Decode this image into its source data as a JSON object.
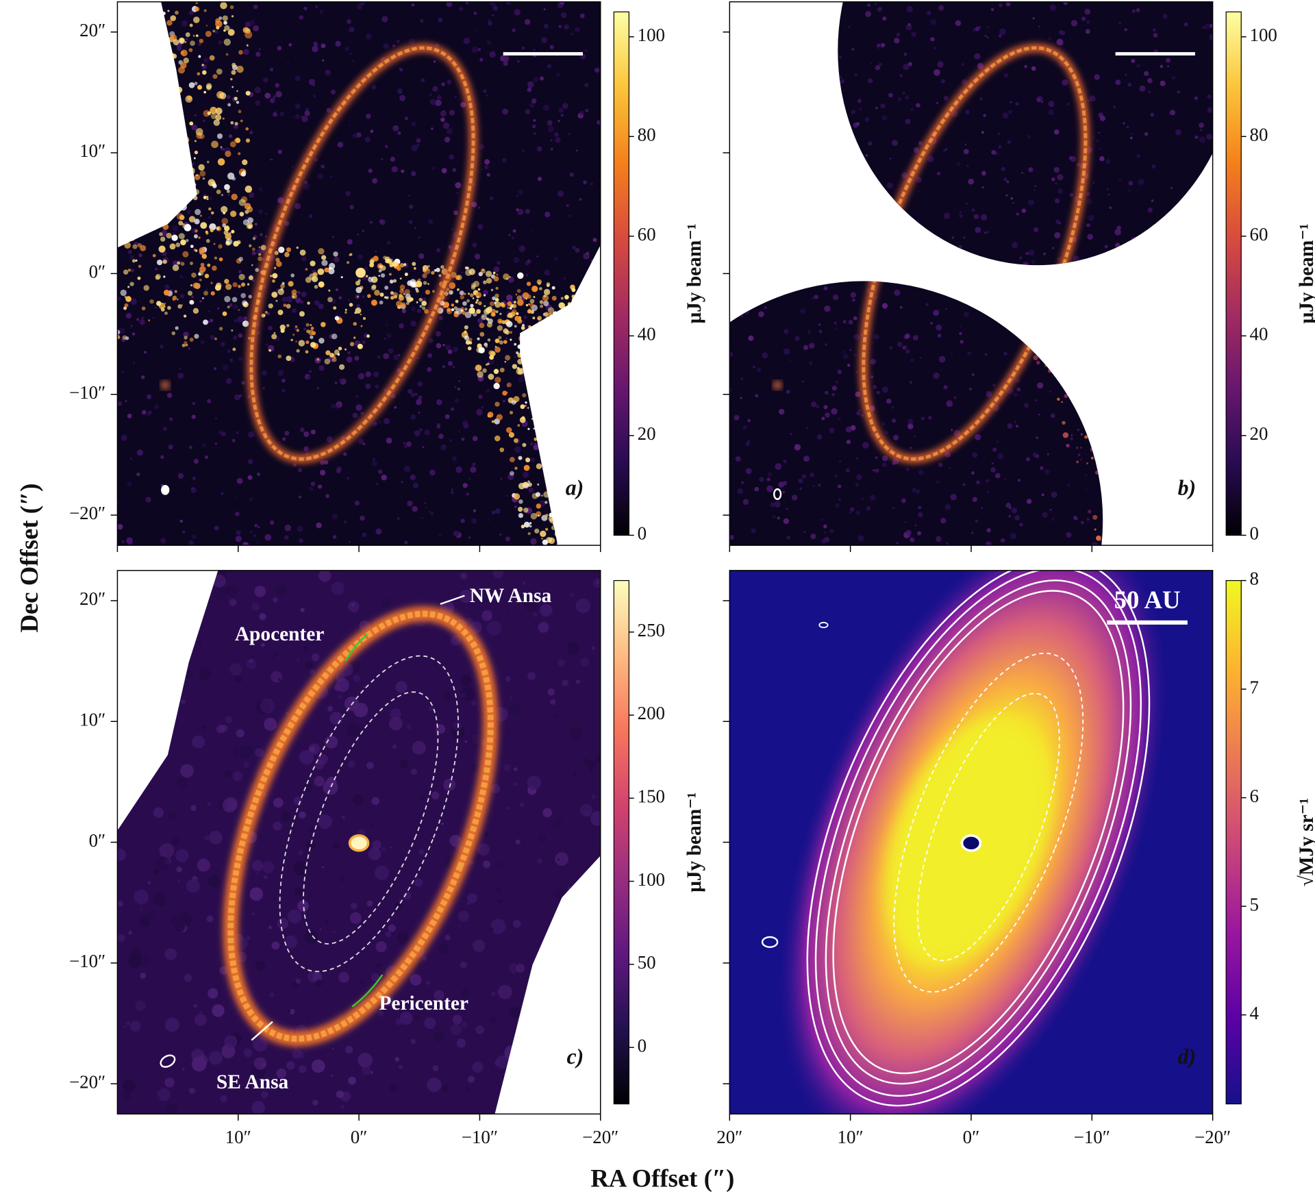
{
  "figure": {
    "ylabel": "Dec Offset (″)",
    "xlabel": "RA Offset (″)"
  },
  "chart_data": [
    {
      "type": "image",
      "panel_label": "a)",
      "xlim": [
        20,
        -20
      ],
      "ylim": [
        -22.5,
        22.5
      ],
      "xticks": [
        20,
        10,
        0,
        -10,
        -20
      ],
      "yticks": [
        {
          "value": 20,
          "label": "20″"
        },
        {
          "value": 10,
          "label": "10″"
        },
        {
          "value": 0,
          "label": "0″"
        },
        {
          "value": -10,
          "label": "−10″"
        },
        {
          "value": -20,
          "label": "−20″"
        }
      ],
      "tick_labels": {
        "x": false,
        "y": true
      },
      "colorbar": {
        "label": "μJy beam⁻¹",
        "lim": [
          0,
          105
        ],
        "ticks": [
          0,
          20,
          40,
          60,
          80,
          100
        ],
        "colormap": "inferno"
      }
    },
    {
      "type": "image",
      "panel_label": "b)",
      "xlim": [
        20,
        -20
      ],
      "ylim": [
        -22.5,
        22.5
      ],
      "xticks": [
        20,
        10,
        0,
        -10,
        -20
      ],
      "yticks": [
        20,
        10,
        0,
        -10,
        -20
      ],
      "tick_labels": {
        "x": false,
        "y": false
      },
      "colorbar": {
        "label": "μJy beam⁻¹",
        "lim": [
          0,
          105
        ],
        "ticks": [
          0,
          20,
          40,
          60,
          80,
          100
        ],
        "colormap": "inferno"
      }
    },
    {
      "type": "image",
      "panel_label": "c)",
      "xlim": [
        20,
        -20
      ],
      "ylim": [
        -22.5,
        22.5
      ],
      "xticks": [
        {
          "value": 10,
          "label": "10″"
        },
        {
          "value": 0,
          "label": "0″"
        },
        {
          "value": -10,
          "label": "−10″"
        },
        {
          "value": -20,
          "label": "−20″"
        }
      ],
      "yticks": [
        {
          "value": 20,
          "label": "20″"
        },
        {
          "value": 10,
          "label": "10″"
        },
        {
          "value": 0,
          "label": "0″"
        },
        {
          "value": -10,
          "label": "−10″"
        },
        {
          "value": -20,
          "label": "−20″"
        }
      ],
      "tick_labels": {
        "x": true,
        "y": true
      },
      "annotations": [
        "NW Ansa",
        "Apocenter",
        "Pericenter",
        "SE Ansa"
      ],
      "colorbar": {
        "label": "μJy beam⁻¹",
        "lim": [
          -34,
          281
        ],
        "ticks": [
          0,
          50,
          100,
          150,
          200,
          250
        ],
        "colormap": "magma"
      }
    },
    {
      "type": "image",
      "panel_label": "d)",
      "xlim": [
        20,
        -20
      ],
      "ylim": [
        -22.5,
        22.5
      ],
      "xticks": [
        {
          "value": 20,
          "label": "20″"
        },
        {
          "value": 10,
          "label": "10″"
        },
        {
          "value": 0,
          "label": "0″"
        },
        {
          "value": -10,
          "label": "−10″"
        },
        {
          "value": -20,
          "label": "−20″"
        }
      ],
      "yticks": [
        20,
        10,
        0,
        -10,
        -20
      ],
      "tick_labels": {
        "x": true,
        "y": false
      },
      "annotations": [
        "50 AU"
      ],
      "colorbar": {
        "label": "√MJy sr⁻¹",
        "lim": [
          3.18,
          8
        ],
        "ticks": [
          4,
          5,
          6,
          7,
          8
        ],
        "colormap": "plasma"
      }
    }
  ]
}
